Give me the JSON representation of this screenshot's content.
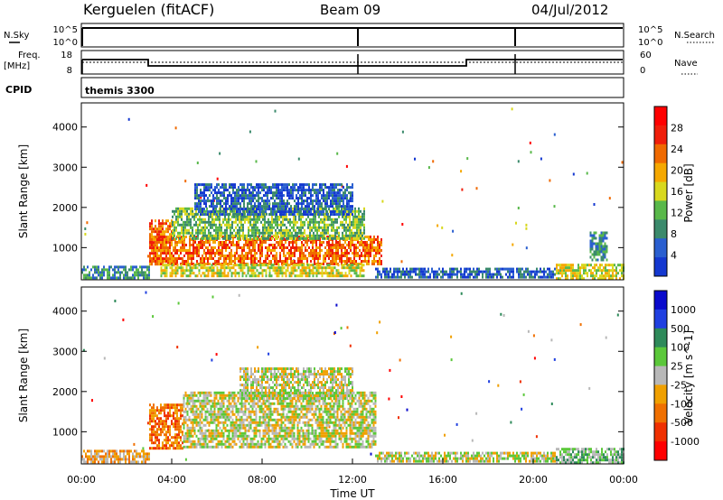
{
  "header": {
    "station": "Kerguelen (fitACF)",
    "beam": "Beam 09",
    "date": "04/Jul/2012"
  },
  "summary_panels": {
    "nsky": {
      "left_label": "N.Sky",
      "left_ticks": [
        "10^5",
        "10^0"
      ],
      "right_label": "N.Search",
      "right_ticks": [
        "10^5",
        "10^0"
      ]
    },
    "freq": {
      "left_label_line1": "Freq.",
      "left_label_line2": "[MHz]",
      "left_ticks": [
        "18",
        "8"
      ],
      "right_label": "Nave",
      "right_ticks": [
        "60",
        "0"
      ]
    },
    "cpid": {
      "label": "CPID",
      "program": "themis 3300"
    }
  },
  "colors": {
    "power": [
      "#1438d0",
      "#2a5fd0",
      "#3b8a6c",
      "#59b84a",
      "#d8d81e",
      "#f5a800",
      "#f06a00",
      "#f01e0a",
      "#ff0000"
    ],
    "velocity": [
      "#0a0acc",
      "#2040e0",
      "#2e8a5a",
      "#5bc83a",
      "#b8b8b8",
      "#f0a000",
      "#f07000",
      "#f03000",
      "#ff0000"
    ]
  },
  "chart_data": [
    {
      "type": "heatmap",
      "name": "power",
      "ylabel": "Slant Range [km]",
      "yticks": [
        "1000",
        "2000",
        "3000",
        "4000"
      ],
      "ylim": [
        200,
        4600
      ],
      "xlim": [
        0,
        24
      ],
      "colorbar_label": "Power [dB]",
      "colorbar_ticks": [
        "4",
        "8",
        "12",
        "16",
        "20",
        "24",
        "28"
      ],
      "regions": [
        {
          "t0": 0.0,
          "t1": 3.0,
          "r0": 250,
          "r1": 550,
          "level": 2
        },
        {
          "t0": 3.0,
          "t1": 4.0,
          "r0": 600,
          "r1": 1700,
          "level": 6
        },
        {
          "t0": 3.0,
          "t1": 13.3,
          "r0": 600,
          "r1": 1300,
          "level": 6
        },
        {
          "t0": 4.0,
          "t1": 12.5,
          "r0": 1200,
          "r1": 2000,
          "level": 3
        },
        {
          "t0": 5.0,
          "t1": 12.0,
          "r0": 1800,
          "r1": 2600,
          "level": 1
        },
        {
          "t0": 3.5,
          "t1": 12.5,
          "r0": 300,
          "r1": 600,
          "level": 4
        },
        {
          "t0": 13.0,
          "t1": 21.0,
          "r0": 250,
          "r1": 500,
          "level": 1
        },
        {
          "t0": 21.0,
          "t1": 24.0,
          "r0": 250,
          "r1": 600,
          "level": 4
        },
        {
          "t0": 22.5,
          "t1": 23.3,
          "r0": 700,
          "r1": 1400,
          "level": 2
        }
      ]
    },
    {
      "type": "heatmap",
      "name": "velocity",
      "ylabel": "Slant Range [km]",
      "yticks": [
        "1000",
        "2000",
        "3000",
        "4000"
      ],
      "ylim": [
        200,
        4600
      ],
      "xlim": [
        0,
        24
      ],
      "xlabel": "Time UT",
      "xticks": [
        "00:00",
        "04:00",
        "08:00",
        "12:00",
        "16:00",
        "20:00",
        "00:00"
      ],
      "colorbar_label": "Velocity [m s^-1]",
      "colorbar_ticks": [
        "1000",
        "500",
        "100",
        "25",
        "-25",
        "-100",
        "-500",
        "-1000"
      ],
      "regions": [
        {
          "t0": 0.0,
          "t1": 3.0,
          "r0": 250,
          "r1": 550,
          "level": 5
        },
        {
          "t0": 3.0,
          "t1": 4.5,
          "r0": 600,
          "r1": 1700,
          "level": 6
        },
        {
          "t0": 4.5,
          "t1": 13.0,
          "r0": 600,
          "r1": 2000,
          "level": 4
        },
        {
          "t0": 7.0,
          "t1": 12.0,
          "r0": 1800,
          "r1": 2600,
          "level": 4
        },
        {
          "t0": 13.0,
          "t1": 21.0,
          "r0": 250,
          "r1": 500,
          "level": 4
        },
        {
          "t0": 21.0,
          "t1": 24.0,
          "r0": 250,
          "r1": 600,
          "level": 3
        }
      ]
    }
  ]
}
